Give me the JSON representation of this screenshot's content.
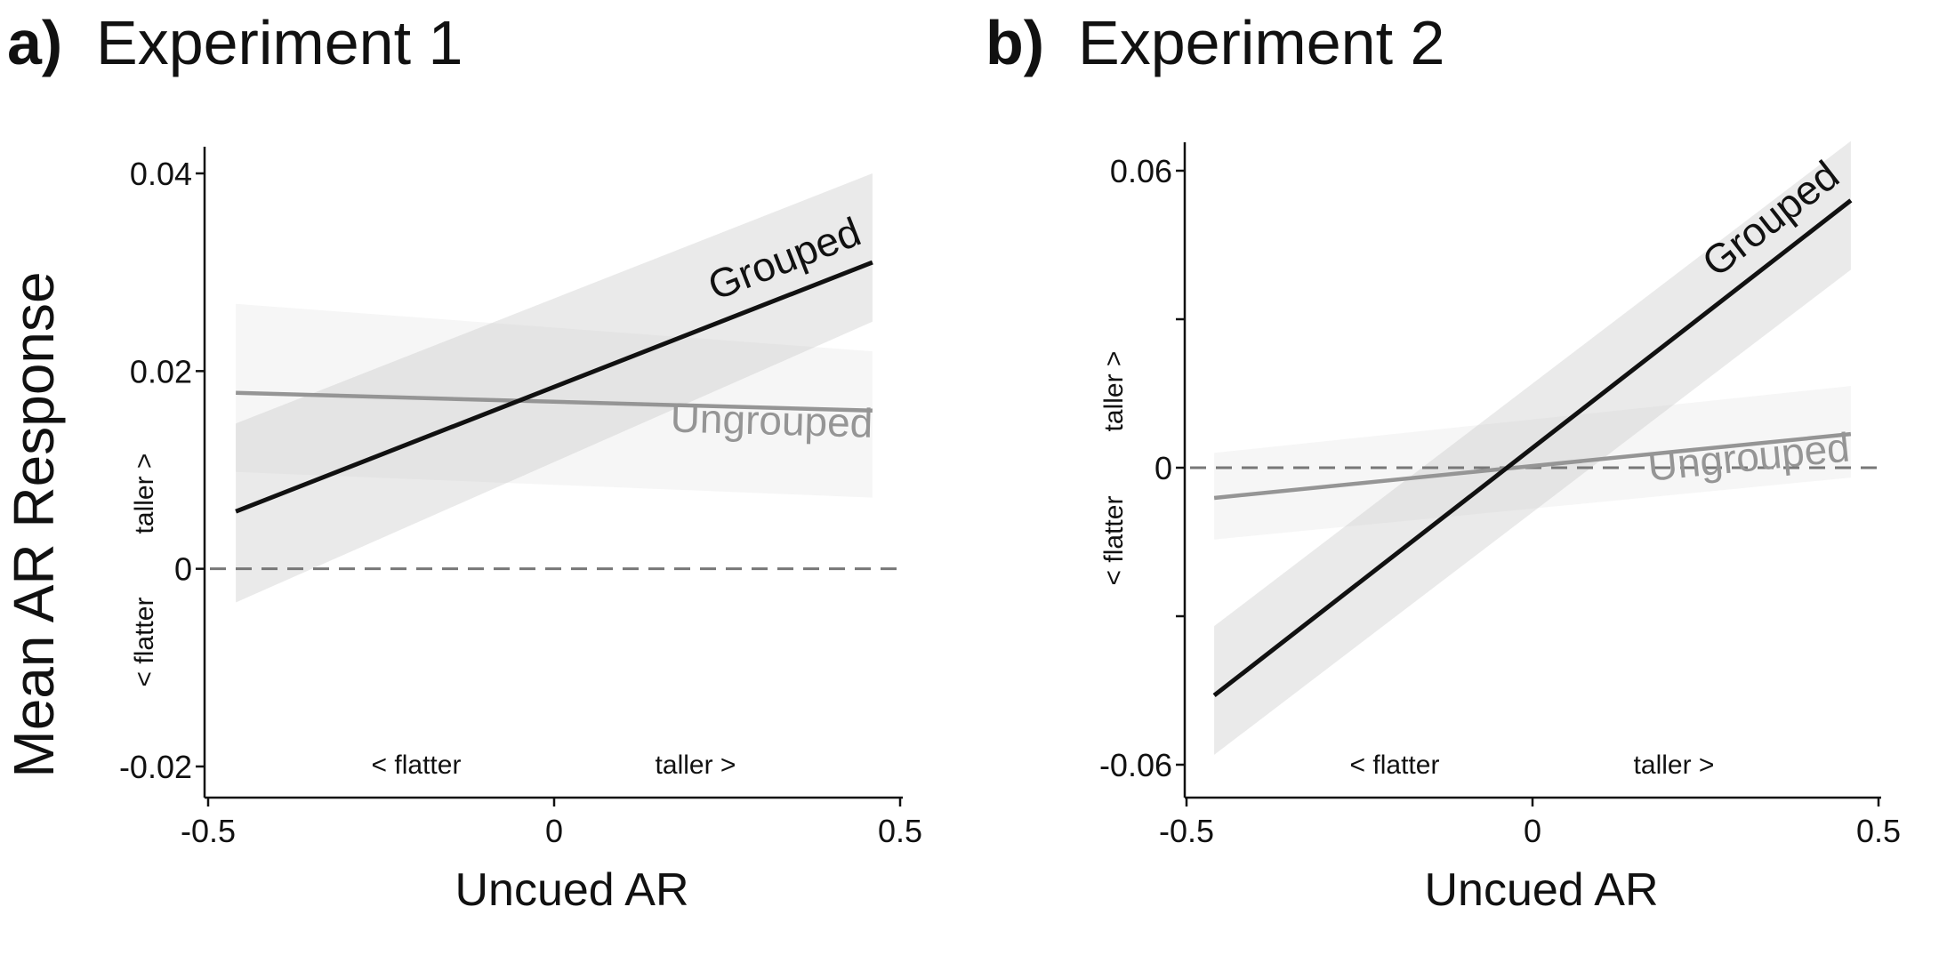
{
  "figure": {
    "shared_ylabel": "Mean AR Response"
  },
  "chart_data": [
    {
      "type": "line",
      "panel_letter": "a)",
      "title": "Experiment 1",
      "xlabel": "Uncued AR",
      "ylabel": "Mean AR Response",
      "xlim": [
        -0.5,
        0.5
      ],
      "ylim": [
        -0.02,
        0.04
      ],
      "xticks": [
        -0.5,
        0,
        0.5
      ],
      "xtick_labels": [
        "-0.5",
        "0",
        "0.5"
      ],
      "yticks": [
        -0.02,
        0,
        0.02,
        0.04
      ],
      "ytick_labels": [
        "-0.02",
        "0",
        "0.02",
        "0.04"
      ],
      "grid": false,
      "reference_line": {
        "y": 0,
        "style": "dashed",
        "color": "#777777"
      },
      "x_direction": {
        "low": "< flatter",
        "high": "taller >"
      },
      "y_direction": {
        "low": "< flatter",
        "high": "taller >"
      },
      "series": [
        {
          "name": "Ungrouped",
          "color": "#959595",
          "band_color": "#d0d0d0",
          "band_opacity": 0.2,
          "x": [
            -0.46,
            0.46
          ],
          "y": [
            0.0178,
            0.016
          ],
          "ci_lower": [
            0.0098,
            0.0072
          ],
          "ci_upper": [
            0.0268,
            0.022
          ]
        },
        {
          "name": "Grouped",
          "color": "#111111",
          "band_color": "#bdbdbd",
          "band_opacity": 0.32,
          "x": [
            -0.46,
            0.46
          ],
          "y": [
            0.0058,
            0.031
          ],
          "ci_lower": [
            -0.0034,
            0.025
          ],
          "ci_upper": [
            0.0147,
            0.04
          ]
        }
      ]
    },
    {
      "type": "line",
      "panel_letter": "b)",
      "title": "Experiment 2",
      "xlabel": "Uncued AR",
      "ylabel": "",
      "xlim": [
        -0.5,
        0.5
      ],
      "ylim": [
        -0.06,
        0.06
      ],
      "xticks": [
        -0.5,
        0,
        0.5
      ],
      "xtick_labels": [
        "-0.5",
        "0",
        "0.5"
      ],
      "yticks": [
        -0.06,
        -0.03,
        0,
        0.03,
        0.06
      ],
      "ytick_labels": [
        "-0.06",
        "",
        "0",
        "",
        "0.06"
      ],
      "grid": false,
      "reference_line": {
        "y": 0,
        "style": "dashed",
        "color": "#777777"
      },
      "x_direction": {
        "low": "< flatter",
        "high": "taller >"
      },
      "y_direction": {
        "low": "< flatter",
        "high": "taller >"
      },
      "series": [
        {
          "name": "Ungrouped",
          "color": "#959595",
          "band_color": "#d0d0d0",
          "band_opacity": 0.2,
          "x": [
            -0.46,
            0.46
          ],
          "y": [
            -0.0061,
            0.0068
          ],
          "ci_lower": [
            -0.0145,
            -0.002
          ],
          "ci_upper": [
            0.003,
            0.0165
          ]
        },
        {
          "name": "Grouped",
          "color": "#111111",
          "band_color": "#bdbdbd",
          "band_opacity": 0.32,
          "x": [
            -0.46,
            0.46
          ],
          "y": [
            -0.046,
            0.054
          ],
          "ci_lower": [
            -0.058,
            0.04
          ],
          "ci_upper": [
            -0.032,
            0.066
          ]
        }
      ]
    }
  ]
}
